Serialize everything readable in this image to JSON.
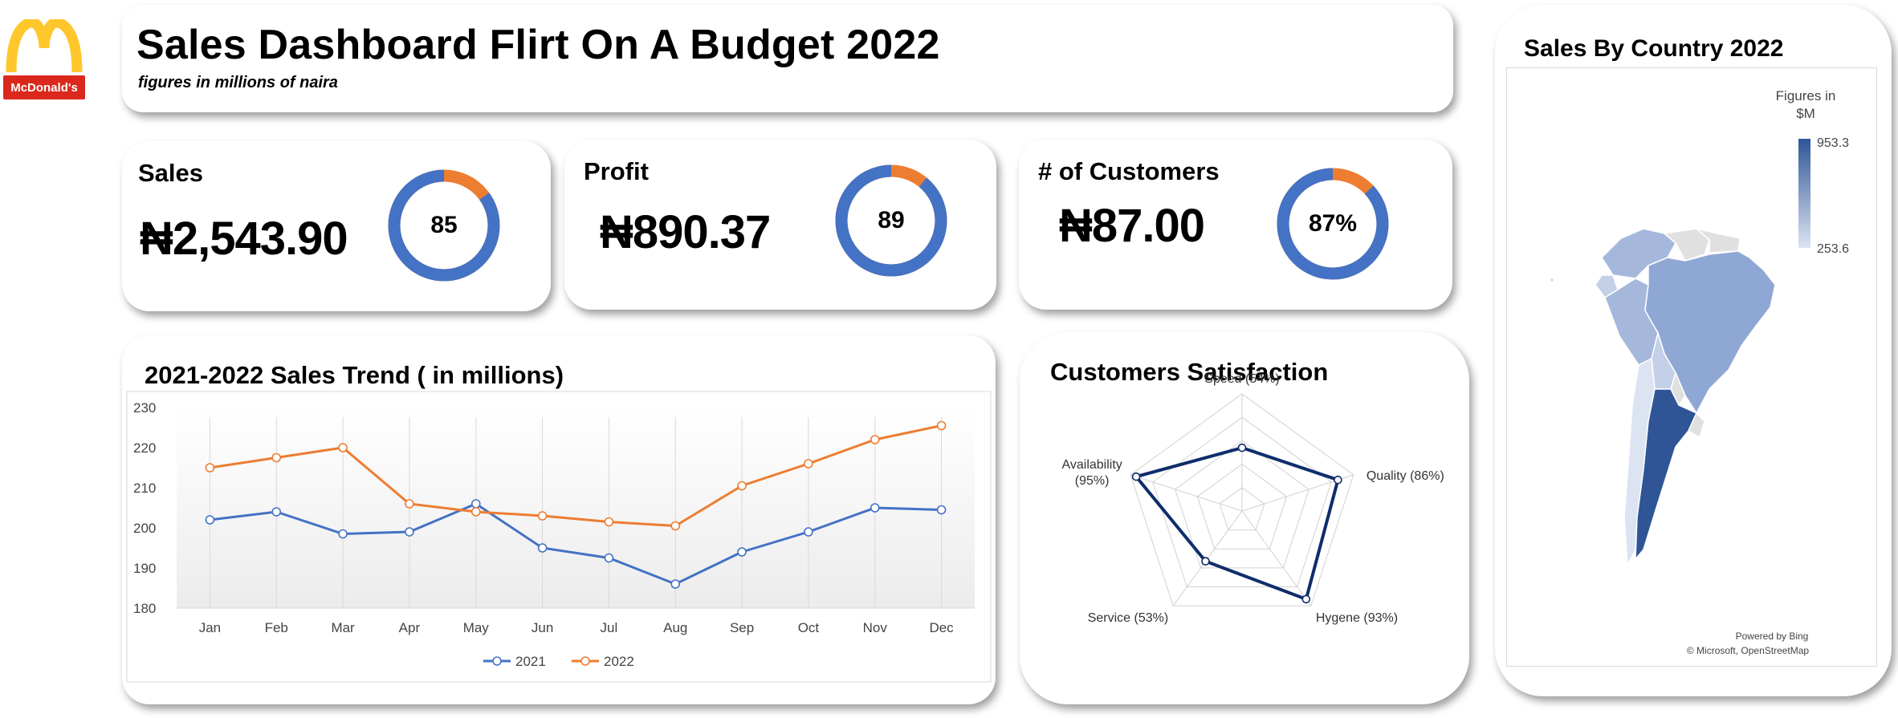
{
  "header": {
    "title": "Sales Dashboard Flirt On A Budget 2022",
    "subtitle": "figures in millions of naira",
    "logo_text": "McDonald's"
  },
  "colors": {
    "primary_blue": "#4472C4",
    "accent_orange": "#ED7D31",
    "radar_navy": "#0E2D6B",
    "map_dark": "#2F5597",
    "map_light": "#DCE4F2",
    "map_gray": "#E0E0E0"
  },
  "kpis": [
    {
      "label": "Sales",
      "value": "₦2,543.90",
      "donut_label": "85",
      "fraction": 0.85
    },
    {
      "label": "Profit",
      "value": "₦890.37",
      "donut_label": "89",
      "fraction": 0.89
    },
    {
      "label": "# of  Customers",
      "value": "₦87.00",
      "donut_label": "87%",
      "fraction": 0.87
    }
  ],
  "trend": {
    "title": "2021-2022 Sales Trend ( in millions)"
  },
  "satisfaction": {
    "title": "Customers Satisfaction"
  },
  "map": {
    "title": "Sales By Country 2022",
    "legend_title": "Figures in $M",
    "legend_max": "953.3",
    "legend_min": "253.6",
    "credit_line1": "Powered by Bing",
    "credit_line2": "© Microsoft, OpenStreetMap"
  },
  "chart_data": [
    {
      "type": "line",
      "title": "2021-2022 Sales Trend ( in millions)",
      "categories": [
        "Jan",
        "Feb",
        "Mar",
        "Apr",
        "May",
        "Jun",
        "Jul",
        "Aug",
        "Sep",
        "Oct",
        "Nov",
        "Dec"
      ],
      "series": [
        {
          "name": "2021",
          "color": "#4472C4",
          "values": [
            202,
            204,
            198.5,
            199,
            206,
            195,
            192.5,
            186,
            194,
            199,
            205,
            204.5
          ]
        },
        {
          "name": "2022",
          "color": "#ED7D31",
          "values": [
            215,
            217.5,
            220,
            206,
            204,
            203,
            201.5,
            200.5,
            210.5,
            216,
            222,
            225.5
          ]
        }
      ],
      "ylim": [
        180,
        230
      ],
      "yticks": [
        180,
        190,
        200,
        210,
        220,
        230
      ],
      "grid": "vertical",
      "legend": "bottom"
    },
    {
      "type": "radar",
      "title": "Customers Satisfaction",
      "axes": [
        "Speed (54%)",
        "Quality (86%)",
        "Hygene (93%)",
        "Service (53%)",
        "Availability (95%)"
      ],
      "values": [
        54,
        86,
        93,
        53,
        95
      ],
      "max": 100
    },
    {
      "type": "donut",
      "items": [
        {
          "label": "Sales",
          "value": 85,
          "max": 100
        },
        {
          "label": "Profit",
          "value": 89,
          "max": 100
        },
        {
          "label": "# of  Customers",
          "value": 87,
          "max": 100
        }
      ]
    }
  ]
}
